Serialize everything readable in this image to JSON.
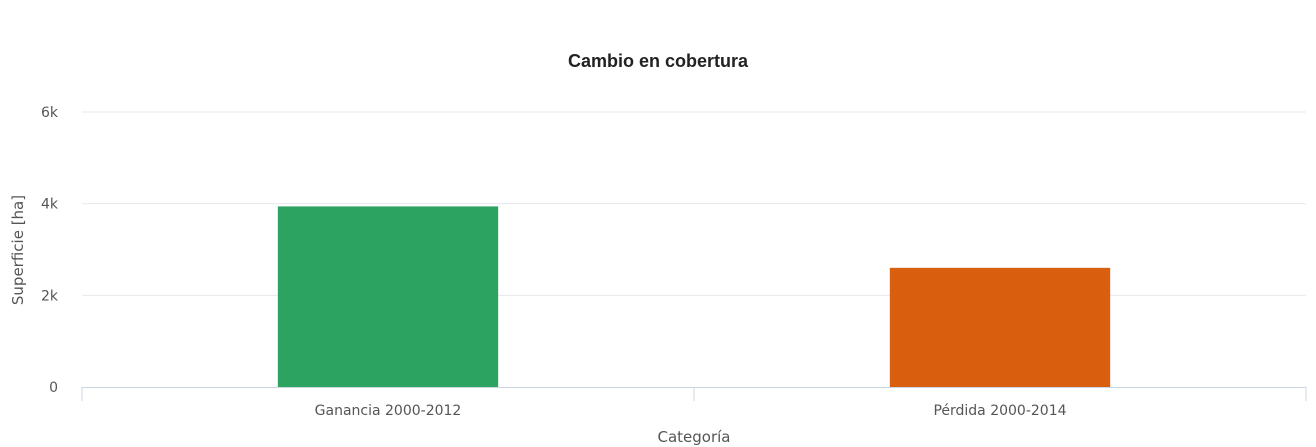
{
  "chart_data": {
    "type": "bar",
    "title": "Cambio en cobertura",
    "xlabel": "Categoría",
    "ylabel": "Superficie [ha]",
    "categories": [
      "Ganancia 2000-2012",
      "Pérdida 2000-2014"
    ],
    "values": [
      3940,
      2600
    ],
    "colors": [
      "#2ca361",
      "#d95f0e"
    ],
    "ylim": [
      0,
      6000
    ],
    "yticks": [
      {
        "value": 0,
        "label": "0"
      },
      {
        "value": 2000,
        "label": "2k"
      },
      {
        "value": 4000,
        "label": "4k"
      },
      {
        "value": 6000,
        "label": "6k"
      }
    ],
    "grid": true,
    "legend": "none"
  }
}
